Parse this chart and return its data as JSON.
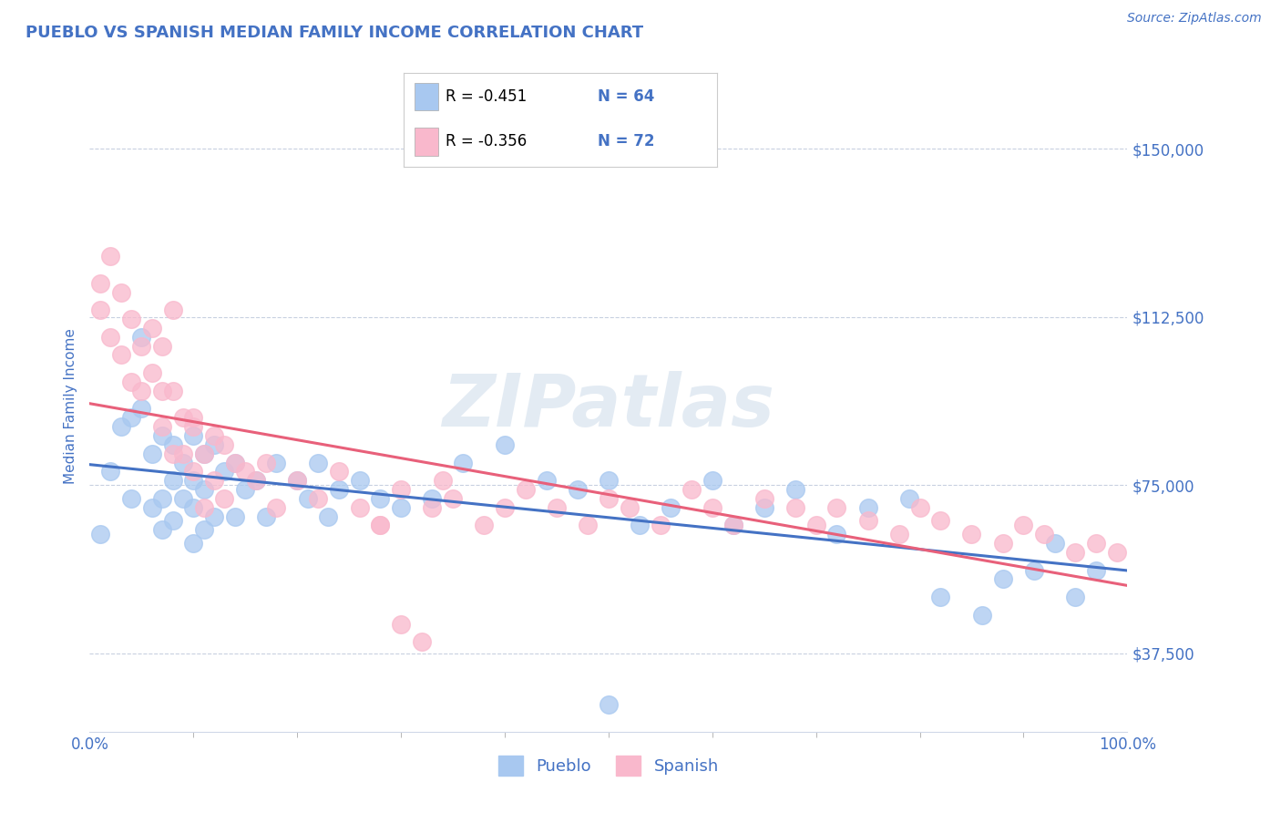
{
  "title": "PUEBLO VS SPANISH MEDIAN FAMILY INCOME CORRELATION CHART",
  "source_text": "Source: ZipAtlas.com",
  "ylabel": "Median Family Income",
  "watermark": "ZIPatlas",
  "x_min": 0.0,
  "x_max": 1.0,
  "y_min": 20000,
  "y_max": 165000,
  "yticks": [
    37500,
    75000,
    112500,
    150000
  ],
  "ytick_labels": [
    "$37,500",
    "$75,000",
    "$112,500",
    "$150,000"
  ],
  "pueblo_color": "#a8c8f0",
  "spanish_color": "#f9b8cc",
  "pueblo_line_color": "#4472c4",
  "spanish_line_color": "#e8607a",
  "title_color": "#4472c4",
  "tick_label_color": "#4472c4",
  "background_color": "#ffffff",
  "grid_color": "#c8d0e0",
  "legend_r1": "R = -0.451",
  "legend_n1": "N = 64",
  "legend_r2": "R = -0.356",
  "legend_n2": "N = 72",
  "pueblo_x": [
    0.01,
    0.02,
    0.03,
    0.04,
    0.04,
    0.05,
    0.05,
    0.06,
    0.06,
    0.07,
    0.07,
    0.07,
    0.08,
    0.08,
    0.08,
    0.09,
    0.09,
    0.1,
    0.1,
    0.1,
    0.1,
    0.11,
    0.11,
    0.11,
    0.12,
    0.12,
    0.13,
    0.14,
    0.14,
    0.15,
    0.16,
    0.17,
    0.18,
    0.2,
    0.21,
    0.22,
    0.23,
    0.24,
    0.26,
    0.28,
    0.3,
    0.33,
    0.36,
    0.4,
    0.44,
    0.47,
    0.5,
    0.53,
    0.56,
    0.6,
    0.62,
    0.65,
    0.68,
    0.72,
    0.75,
    0.79,
    0.82,
    0.86,
    0.88,
    0.91,
    0.93,
    0.95,
    0.97,
    0.5
  ],
  "pueblo_y": [
    64000,
    78000,
    88000,
    90000,
    72000,
    108000,
    92000,
    82000,
    70000,
    86000,
    72000,
    65000,
    84000,
    76000,
    67000,
    80000,
    72000,
    86000,
    76000,
    70000,
    62000,
    82000,
    74000,
    65000,
    84000,
    68000,
    78000,
    80000,
    68000,
    74000,
    76000,
    68000,
    80000,
    76000,
    72000,
    80000,
    68000,
    74000,
    76000,
    72000,
    70000,
    72000,
    80000,
    84000,
    76000,
    74000,
    76000,
    66000,
    70000,
    76000,
    66000,
    70000,
    74000,
    64000,
    70000,
    72000,
    50000,
    46000,
    54000,
    56000,
    62000,
    50000,
    56000,
    26000
  ],
  "spanish_x": [
    0.01,
    0.01,
    0.02,
    0.02,
    0.03,
    0.03,
    0.04,
    0.04,
    0.05,
    0.05,
    0.06,
    0.06,
    0.07,
    0.07,
    0.07,
    0.08,
    0.08,
    0.08,
    0.09,
    0.09,
    0.1,
    0.1,
    0.1,
    0.11,
    0.11,
    0.12,
    0.12,
    0.13,
    0.13,
    0.14,
    0.15,
    0.16,
    0.17,
    0.18,
    0.2,
    0.22,
    0.24,
    0.26,
    0.28,
    0.3,
    0.33,
    0.35,
    0.38,
    0.4,
    0.42,
    0.45,
    0.48,
    0.5,
    0.52,
    0.55,
    0.58,
    0.6,
    0.62,
    0.65,
    0.68,
    0.7,
    0.72,
    0.75,
    0.78,
    0.8,
    0.82,
    0.85,
    0.88,
    0.9,
    0.92,
    0.95,
    0.97,
    0.99,
    0.3,
    0.32,
    0.28,
    0.34
  ],
  "spanish_y": [
    114000,
    120000,
    126000,
    108000,
    118000,
    104000,
    112000,
    98000,
    106000,
    96000,
    110000,
    100000,
    96000,
    106000,
    88000,
    96000,
    82000,
    114000,
    90000,
    82000,
    88000,
    78000,
    90000,
    82000,
    70000,
    86000,
    76000,
    84000,
    72000,
    80000,
    78000,
    76000,
    80000,
    70000,
    76000,
    72000,
    78000,
    70000,
    66000,
    74000,
    70000,
    72000,
    66000,
    70000,
    74000,
    70000,
    66000,
    72000,
    70000,
    66000,
    74000,
    70000,
    66000,
    72000,
    70000,
    66000,
    70000,
    67000,
    64000,
    70000,
    67000,
    64000,
    62000,
    66000,
    64000,
    60000,
    62000,
    60000,
    44000,
    40000,
    66000,
    76000
  ]
}
